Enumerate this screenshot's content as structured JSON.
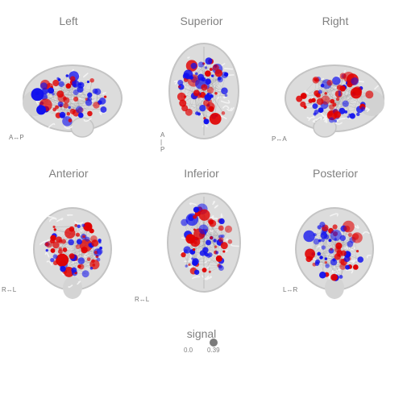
{
  "views": [
    {
      "id": "left",
      "title": "Left",
      "orientation": "A↔P"
    },
    {
      "id": "superior",
      "title": "Superior",
      "orientation": "A\n|\nP"
    },
    {
      "id": "right",
      "title": "Right",
      "orientation": "P↔A"
    },
    {
      "id": "anterior",
      "title": "Anterior",
      "orientation": "R↔L"
    },
    {
      "id": "inferior",
      "title": "Inferior",
      "orientation": "R↔L"
    },
    {
      "id": "posterior",
      "title": "Posterior",
      "orientation": "L↔R"
    }
  ],
  "legend": {
    "title": "signal",
    "min_label": "0.0",
    "max_label": "0.39"
  },
  "colors": {
    "positive": "#e00000",
    "negative": "#1010ee",
    "brain": "#dcdcdc",
    "edge": "#c4c4c4"
  }
}
